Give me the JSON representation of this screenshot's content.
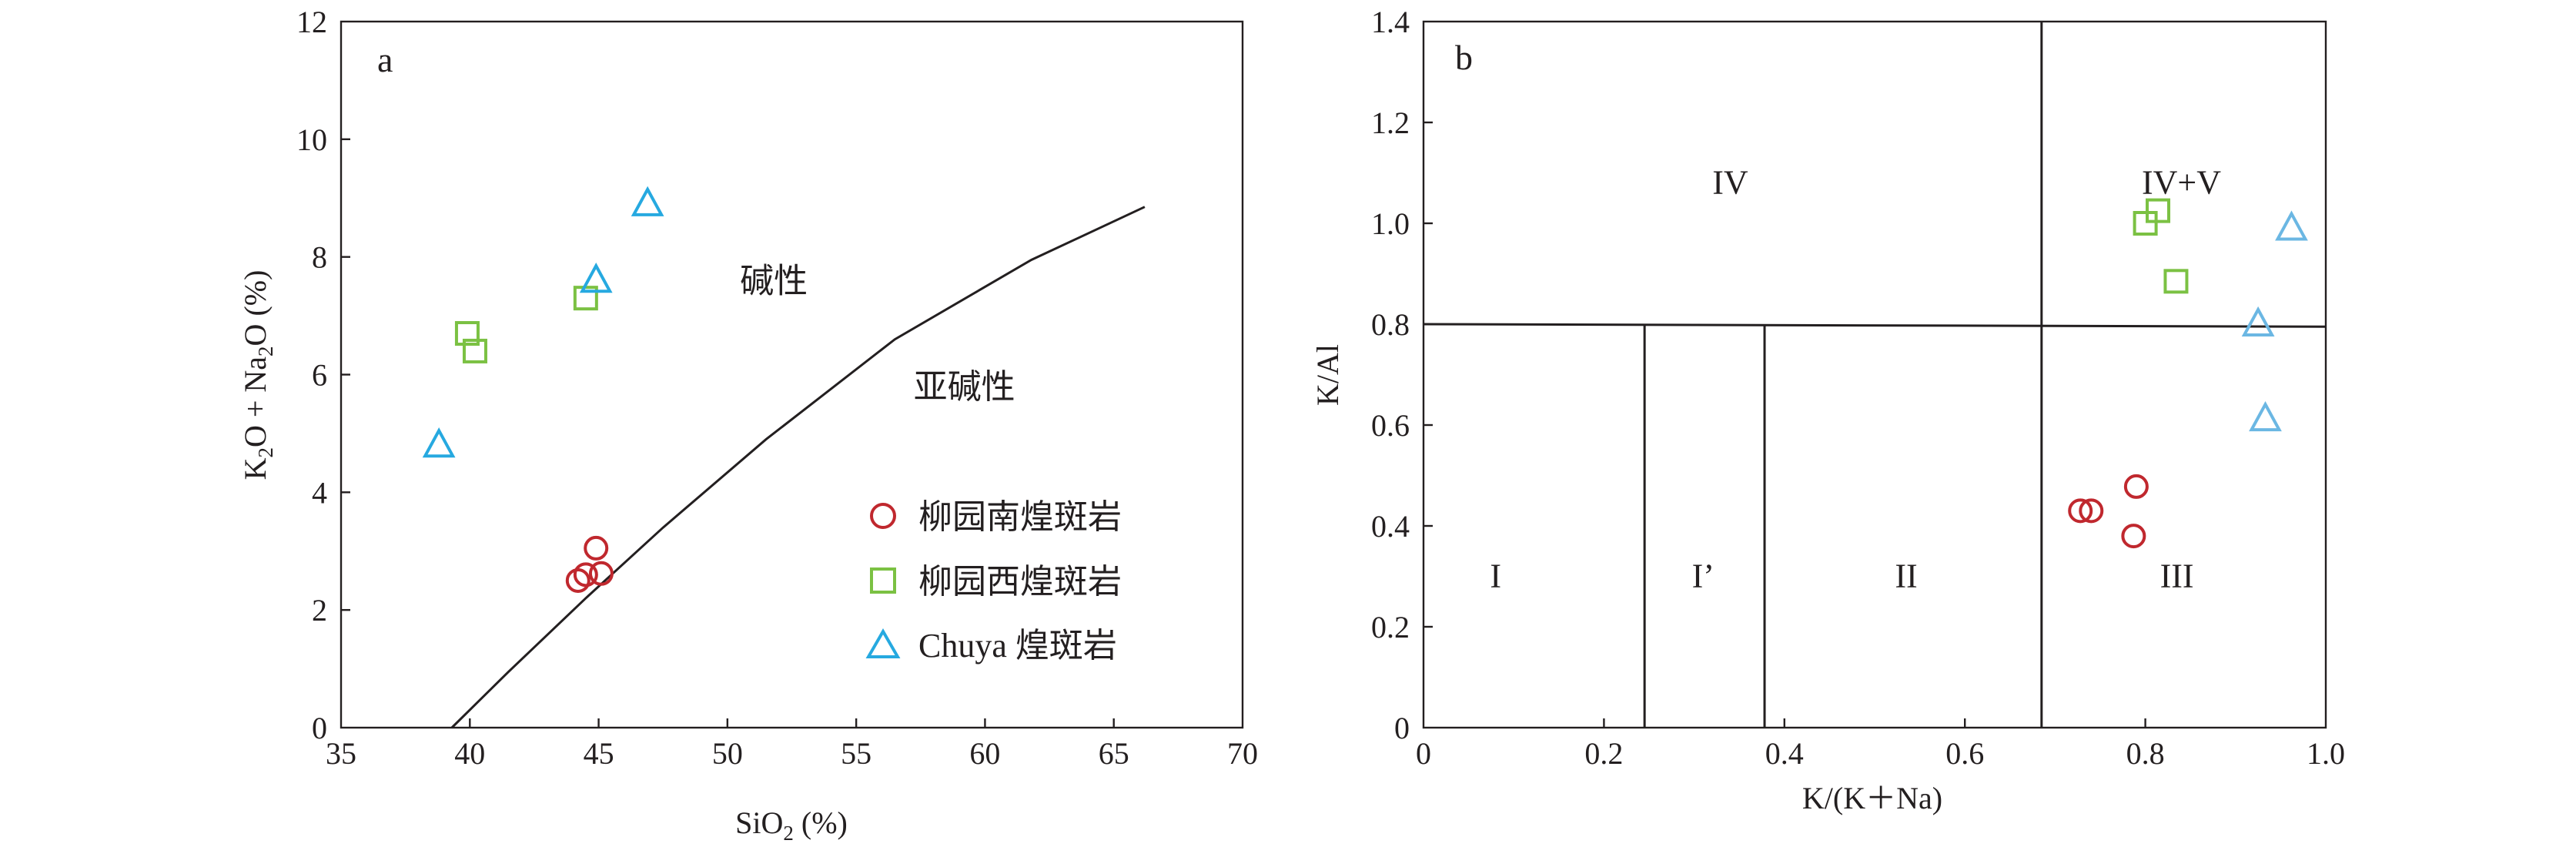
{
  "chart_data": [
    {
      "panel_label": "a",
      "type": "scatter",
      "xlabel": {
        "main": "SiO",
        "sub": "2",
        "tail": " (%)"
      },
      "ylabel": {
        "p1": "K",
        "s1": "2",
        "p2": "O + Na",
        "s2": "2",
        "p3": "O (%)"
      },
      "xlim": [
        35,
        70
      ],
      "ylim": [
        0,
        12
      ],
      "xticks": [
        35,
        40,
        45,
        50,
        55,
        60,
        65,
        70
      ],
      "yticks": [
        0,
        2,
        4,
        6,
        8,
        10,
        12
      ],
      "boundary_line": [
        [
          39.3,
          0
        ],
        [
          41.5,
          0.95
        ],
        [
          44.5,
          2.2
        ],
        [
          47.5,
          3.4
        ],
        [
          51.5,
          4.9
        ],
        [
          56.5,
          6.6
        ],
        [
          61.8,
          7.95
        ],
        [
          66.2,
          8.85
        ]
      ],
      "region_labels": [
        {
          "text": "碱性",
          "x": 51.8,
          "y": 7.4
        },
        {
          "text": "亚碱性",
          "x": 59.2,
          "y": 5.6
        }
      ],
      "series": [
        {
          "name": "柳园南煌斑岩",
          "marker": "circle",
          "color": "#c0282e",
          "points": [
            [
              44.2,
              2.5
            ],
            [
              44.5,
              2.6
            ],
            [
              44.9,
              3.05
            ],
            [
              45.1,
              2.62
            ]
          ]
        },
        {
          "name": "柳园西煌斑岩",
          "marker": "square",
          "color": "#7bc143",
          "points": [
            [
              39.9,
              6.7
            ],
            [
              40.2,
              6.4
            ],
            [
              44.5,
              7.3
            ]
          ]
        },
        {
          "name": "Chuya 煌斑岩",
          "marker": "triangle",
          "color": "#26a9e0",
          "points": [
            [
              38.8,
              4.8
            ],
            [
              44.9,
              7.6
            ],
            [
              46.9,
              8.9
            ]
          ]
        }
      ]
    },
    {
      "panel_label": "b",
      "type": "scatter",
      "xlabel": "K/(K＋Na)",
      "ylabel": "K/Al",
      "xlim": [
        0,
        1.0
      ],
      "ylim": [
        0,
        1.4
      ],
      "xticks": [
        "0",
        "0.2",
        "0.4",
        "0.6",
        "0.8",
        "1.0"
      ],
      "yticks": [
        "0",
        "0.2",
        "0.4",
        "0.6",
        "0.8",
        "1.0",
        "1.2",
        "1.4"
      ],
      "field_lines": [
        [
          [
            0,
            0.8
          ],
          [
            1.0,
            0.795
          ]
        ],
        [
          [
            0.685,
            0
          ],
          [
            0.685,
            1.4
          ]
        ],
        [
          [
            0.245,
            0
          ],
          [
            0.245,
            0.8
          ]
        ],
        [
          [
            0.378,
            0
          ],
          [
            0.378,
            0.8
          ]
        ]
      ],
      "region_labels": [
        {
          "text": "I",
          "x": 0.08,
          "y": 0.3
        },
        {
          "text": "I’",
          "x": 0.31,
          "y": 0.3
        },
        {
          "text": "II",
          "x": 0.535,
          "y": 0.3
        },
        {
          "text": "III",
          "x": 0.835,
          "y": 0.3
        },
        {
          "text": "IV",
          "x": 0.34,
          "y": 1.08
        },
        {
          "text": "IV+V",
          "x": 0.84,
          "y": 1.08
        }
      ],
      "series": [
        {
          "name": "柳园南煌斑岩",
          "marker": "circle",
          "color": "#c0282e",
          "points": [
            [
              0.728,
              0.43
            ],
            [
              0.74,
              0.43
            ],
            [
              0.787,
              0.38
            ],
            [
              0.79,
              0.478
            ]
          ]
        },
        {
          "name": "柳园西煌斑岩",
          "marker": "square",
          "color": "#7bc143",
          "points": [
            [
              0.8,
              1.0
            ],
            [
              0.814,
              1.025
            ],
            [
              0.834,
              0.885
            ]
          ]
        },
        {
          "name": "Chuya 煌斑岩",
          "marker": "triangle",
          "color": "#6bb7e3",
          "points": [
            [
              0.925,
              0.8
            ],
            [
              0.933,
              0.612
            ],
            [
              0.962,
              0.99
            ]
          ]
        }
      ]
    }
  ]
}
